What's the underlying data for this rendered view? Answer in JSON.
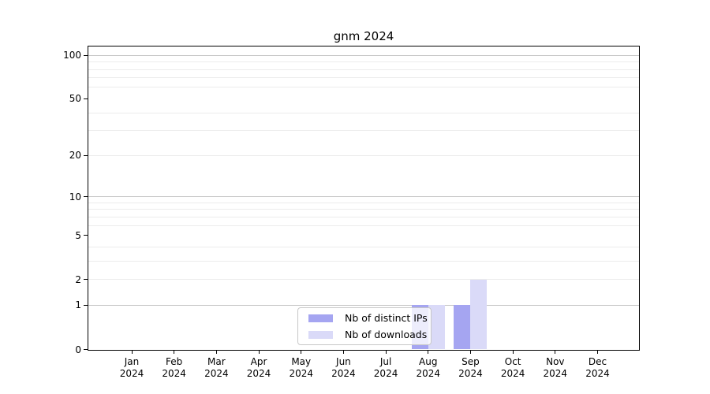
{
  "chart_data": {
    "type": "bar",
    "title": "gnm 2024",
    "categories": [
      "Jan",
      "Feb",
      "Mar",
      "Apr",
      "May",
      "Jun",
      "Jul",
      "Aug",
      "Sep",
      "Oct",
      "Nov",
      "Dec"
    ],
    "category_year": "2024",
    "series": [
      {
        "name": "Nb of distinct IPs",
        "color": "#a5a5f1",
        "values": [
          0,
          0,
          0,
          0,
          0,
          0,
          0,
          1,
          1,
          0,
          0,
          0
        ]
      },
      {
        "name": "Nb of downloads",
        "color": "#dadaf8",
        "values": [
          0,
          0,
          0,
          0,
          0,
          0,
          0,
          1,
          2,
          0,
          0,
          0
        ]
      }
    ],
    "y_axis": {
      "scale": "log10(1+y)",
      "tick_labels": [
        0,
        1,
        2,
        5,
        10,
        20,
        50,
        100
      ],
      "major_gridlines": [
        1,
        10,
        100
      ],
      "minor_gridlines": [
        2,
        3,
        4,
        6,
        7,
        8,
        9,
        20,
        30,
        40,
        60,
        70,
        80,
        90
      ],
      "ymax": 115,
      "grid": true
    },
    "legend_position": "bottom-center",
    "colors": {
      "major_grid": "#c6c6c6",
      "minor_grid": "#ececec",
      "spine": "#000000",
      "background": "#ffffff"
    }
  }
}
